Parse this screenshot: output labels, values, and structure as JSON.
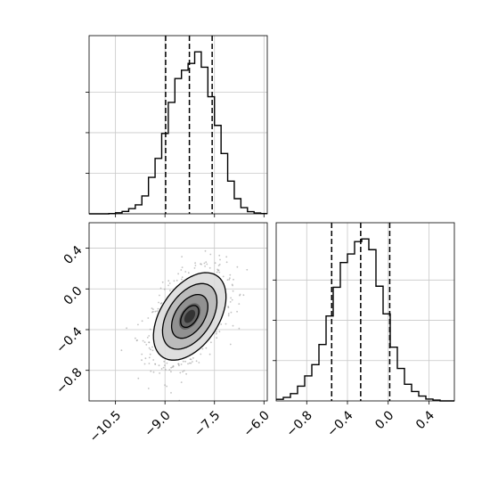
{
  "chart_data": [
    {
      "type": "histogram",
      "panel": "top-left",
      "variable": "x",
      "xlim": [
        -11.3,
        -5.9
      ],
      "bin_edges": [
        -11.3,
        -11.1,
        -10.9,
        -10.7,
        -10.5,
        -10.3,
        -10.1,
        -9.9,
        -9.7,
        -9.5,
        -9.3,
        -9.1,
        -8.9,
        -8.7,
        -8.5,
        -8.3,
        -8.1,
        -7.9,
        -7.7,
        -7.5,
        -7.3,
        -7.1,
        -6.9,
        -6.7,
        -6.5,
        -6.3,
        -6.1,
        -5.9
      ],
      "counts": [
        0,
        0,
        0,
        1,
        4,
        9,
        19,
        33,
        66,
        135,
        205,
        297,
        412,
        500,
        531,
        556,
        599,
        542,
        433,
        327,
        223,
        121,
        56,
        23,
        8,
        3,
        1
      ],
      "quantile_lines": [
        -8.98,
        -8.26,
        -7.57
      ],
      "grid": true
    },
    {
      "type": "histogram",
      "panel": "bottom-right",
      "variable": "y",
      "xlim": [
        -1.1,
        0.65
      ],
      "bin_edges": [
        -1.1,
        -1.03,
        -0.96,
        -0.89,
        -0.82,
        -0.75,
        -0.68,
        -0.61,
        -0.54,
        -0.47,
        -0.4,
        -0.33,
        -0.26,
        -0.19,
        -0.12,
        -0.05,
        0.02,
        0.09,
        0.16,
        0.23,
        0.3,
        0.37,
        0.44,
        0.51,
        0.58,
        0.65
      ],
      "counts": [
        6,
        13,
        27,
        55,
        93,
        135,
        210,
        316,
        423,
        515,
        547,
        593,
        603,
        563,
        427,
        324,
        200,
        121,
        62,
        35,
        18,
        7,
        3,
        0,
        0
      ],
      "quantile_lines": [
        -0.555,
        -0.27,
        0.015
      ],
      "x_ticks": [
        "−0.8",
        "−0.4",
        "0.0",
        "0.4"
      ],
      "x_tick_values": [
        -0.8,
        -0.4,
        0.0,
        0.4
      ],
      "grid": true
    },
    {
      "type": "heatmap",
      "panel": "bottom-left",
      "description_kind": "2d-density with scatter points and contour levels",
      "xlim": [
        -11.3,
        -5.9
      ],
      "ylim": [
        -1.1,
        0.65
      ],
      "x_ticks": [
        "−10.5",
        "−9.0",
        "−7.5",
        "−6.0"
      ],
      "x_tick_values": [
        -10.5,
        -9.0,
        -7.5,
        -6.0
      ],
      "y_ticks": [
        "−0.8",
        "−0.4",
        "0.0",
        "0.4"
      ],
      "y_tick_values": [
        -0.8,
        -0.4,
        0.0,
        0.4
      ],
      "center": [
        -8.25,
        -0.27
      ],
      "std": [
        0.55,
        0.215
      ],
      "correlation": 0.45,
      "contour_levels_sigma": [
        0.5,
        1.0,
        1.5,
        2.0
      ],
      "grid": true
    }
  ]
}
